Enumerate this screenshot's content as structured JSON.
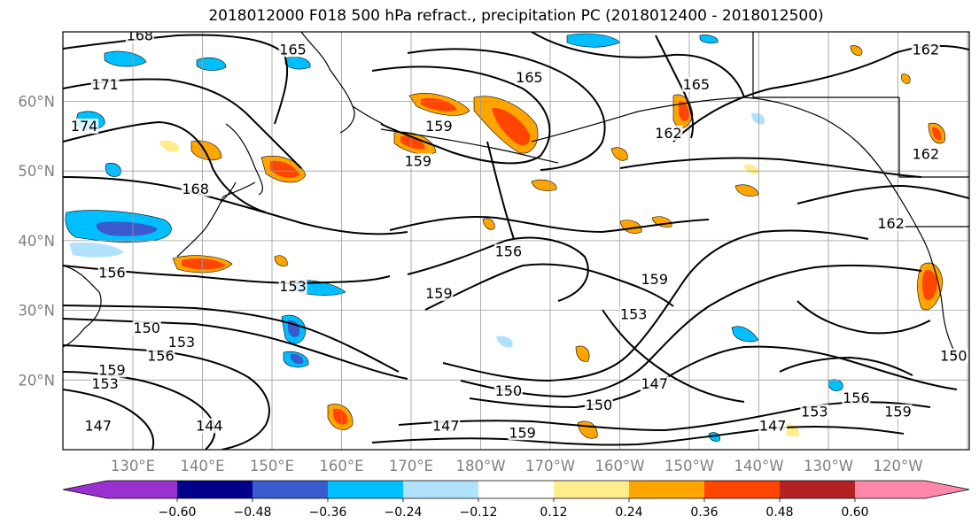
{
  "figure": {
    "title": "2018012000 F018 500 hPa refract., precipitation PC (2018012400 - 2018012500)"
  },
  "map": {
    "lat_labels": [
      "60°N",
      "50°N",
      "40°N",
      "30°N",
      "20°N"
    ],
    "lat_values": [
      60,
      50,
      40,
      30,
      20
    ],
    "lon_labels": [
      "130°E",
      "140°E",
      "150°E",
      "160°E",
      "170°E",
      "180°W",
      "170°W",
      "160°W",
      "150°W",
      "140°W",
      "130°W",
      "120°W"
    ],
    "lon_values": [
      130,
      140,
      150,
      160,
      170,
      180,
      190,
      200,
      210,
      220,
      230,
      240
    ],
    "lon_range": [
      120,
      250
    ],
    "lat_range": [
      10,
      70
    ],
    "grid_lon_step": 10,
    "grid_lat_step": 10,
    "contour_labels": [
      {
        "text": "168",
        "lon": 131,
        "lat": 69
      },
      {
        "text": "171",
        "lon": 126,
        "lat": 62
      },
      {
        "text": "174",
        "lon": 123,
        "lat": 56
      },
      {
        "text": "165",
        "lon": 153,
        "lat": 67
      },
      {
        "text": "165",
        "lon": 187,
        "lat": 63
      },
      {
        "text": "165",
        "lon": 211,
        "lat": 62
      },
      {
        "text": "162",
        "lon": 244,
        "lat": 67
      },
      {
        "text": "162",
        "lon": 207,
        "lat": 55
      },
      {
        "text": "162",
        "lon": 244,
        "lat": 52
      },
      {
        "text": "162",
        "lon": 239,
        "lat": 42
      },
      {
        "text": "159",
        "lon": 174,
        "lat": 56
      },
      {
        "text": "159",
        "lon": 171,
        "lat": 51
      },
      {
        "text": "168",
        "lon": 139,
        "lat": 47
      },
      {
        "text": "156",
        "lon": 184,
        "lat": 38
      },
      {
        "text": "156",
        "lon": 127,
        "lat": 35
      },
      {
        "text": "159",
        "lon": 174,
        "lat": 32
      },
      {
        "text": "159",
        "lon": 205,
        "lat": 34
      },
      {
        "text": "153",
        "lon": 153,
        "lat": 33
      },
      {
        "text": "153",
        "lon": 202,
        "lat": 29
      },
      {
        "text": "150",
        "lon": 132,
        "lat": 27
      },
      {
        "text": "153",
        "lon": 137,
        "lat": 25
      },
      {
        "text": "156",
        "lon": 134,
        "lat": 23
      },
      {
        "text": "159",
        "lon": 127,
        "lat": 21
      },
      {
        "text": "153",
        "lon": 126,
        "lat": 19
      },
      {
        "text": "150",
        "lon": 184,
        "lat": 18
      },
      {
        "text": "147",
        "lon": 205,
        "lat": 19
      },
      {
        "text": "150",
        "lon": 197,
        "lat": 16
      },
      {
        "text": "147",
        "lon": 175,
        "lat": 13
      },
      {
        "text": "147",
        "lon": 125,
        "lat": 13
      },
      {
        "text": "144",
        "lon": 141,
        "lat": 13
      },
      {
        "text": "159",
        "lon": 186,
        "lat": 12
      },
      {
        "text": "159",
        "lon": 240,
        "lat": 15
      },
      {
        "text": "156",
        "lon": 234,
        "lat": 17
      },
      {
        "text": "153",
        "lon": 228,
        "lat": 15
      },
      {
        "text": "147",
        "lon": 222,
        "lat": 13
      },
      {
        "text": "150",
        "lon": 248,
        "lat": 23
      }
    ]
  },
  "colorbar": {
    "tick_labels": [
      "−0.60",
      "−0.48",
      "−0.36",
      "−0.24",
      "−0.12",
      "0.12",
      "0.24",
      "0.36",
      "0.48",
      "0.60"
    ],
    "levels": [
      -0.72,
      -0.6,
      -0.48,
      -0.36,
      -0.24,
      -0.12,
      0.12,
      0.24,
      0.36,
      0.48,
      0.6,
      0.72
    ],
    "colors": [
      "#9b30d0",
      "#00008b",
      "#3a5bd0",
      "#00bfff",
      "#b0e2ff",
      "#ffffff",
      "#ffec8b",
      "#ffa500",
      "#ff4500",
      "#b22222",
      "#ff88aa"
    ],
    "under_color": "#9b30d0",
    "over_color": "#ff88aa"
  },
  "colors": {
    "grid": "#9a9a9a",
    "contour": "#000000",
    "coast": "#000000"
  }
}
